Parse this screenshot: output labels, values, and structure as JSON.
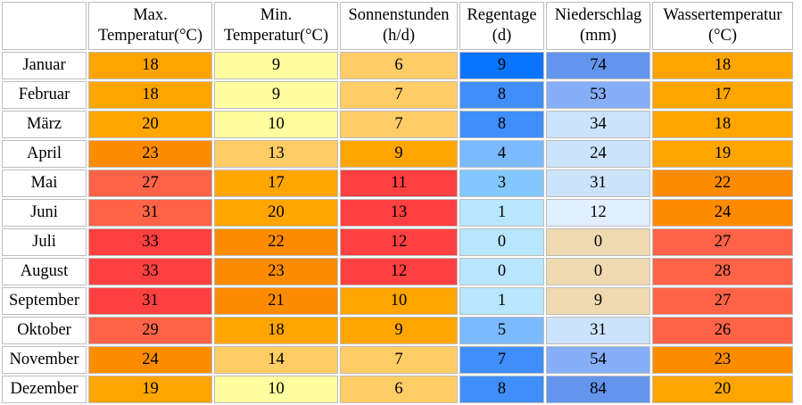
{
  "table": {
    "columns": [
      {
        "line1": "Max.",
        "line2": "Temperatur(°C)"
      },
      {
        "line1": "Min.",
        "line2": "Temperatur(°C)"
      },
      {
        "line1": "Sonnenstunden",
        "line2": "(h/d)"
      },
      {
        "line1": "Regentage",
        "line2": "(d)"
      },
      {
        "line1": "Niederschlag",
        "line2": "(mm)"
      },
      {
        "line1": "Wassertemperatur",
        "line2": "(°C)"
      }
    ],
    "rows": [
      {
        "month": "Januar",
        "cells": [
          {
            "value": "18",
            "color": "#FFA500"
          },
          {
            "value": "9",
            "color": "#FFFFA0"
          },
          {
            "value": "6",
            "color": "#FFCC66"
          },
          {
            "value": "9",
            "color": "#0A74FF"
          },
          {
            "value": "74",
            "color": "#6495ED"
          },
          {
            "value": "18",
            "color": "#FFA500"
          }
        ]
      },
      {
        "month": "Februar",
        "cells": [
          {
            "value": "18",
            "color": "#FFA500"
          },
          {
            "value": "9",
            "color": "#FFFFA0"
          },
          {
            "value": "7",
            "color": "#FFCC66"
          },
          {
            "value": "8",
            "color": "#3F8EFC"
          },
          {
            "value": "53",
            "color": "#87AEF8"
          },
          {
            "value": "17",
            "color": "#FFA500"
          }
        ]
      },
      {
        "month": "März",
        "cells": [
          {
            "value": "20",
            "color": "#FFA500"
          },
          {
            "value": "10",
            "color": "#FFFFA0"
          },
          {
            "value": "7",
            "color": "#FFCC66"
          },
          {
            "value": "8",
            "color": "#3F8EFC"
          },
          {
            "value": "34",
            "color": "#CCE3FC"
          },
          {
            "value": "18",
            "color": "#FFA500"
          }
        ]
      },
      {
        "month": "April",
        "cells": [
          {
            "value": "23",
            "color": "#FF8C00"
          },
          {
            "value": "13",
            "color": "#FFCC66"
          },
          {
            "value": "9",
            "color": "#FFA500"
          },
          {
            "value": "4",
            "color": "#7CB9FF"
          },
          {
            "value": "24",
            "color": "#CCE3FC"
          },
          {
            "value": "19",
            "color": "#FFA500"
          }
        ]
      },
      {
        "month": "Mai",
        "cells": [
          {
            "value": "27",
            "color": "#FF6347"
          },
          {
            "value": "17",
            "color": "#FFA500"
          },
          {
            "value": "11",
            "color": "#FF4040"
          },
          {
            "value": "3",
            "color": "#82C8FF"
          },
          {
            "value": "31",
            "color": "#CCE3FC"
          },
          {
            "value": "22",
            "color": "#FF8C00"
          }
        ]
      },
      {
        "month": "Juni",
        "cells": [
          {
            "value": "31",
            "color": "#FF6347"
          },
          {
            "value": "20",
            "color": "#FFA500"
          },
          {
            "value": "13",
            "color": "#FF4040"
          },
          {
            "value": "1",
            "color": "#B8E6FF"
          },
          {
            "value": "12",
            "color": "#E2EFFF"
          },
          {
            "value": "24",
            "color": "#FF8C00"
          }
        ]
      },
      {
        "month": "Juli",
        "cells": [
          {
            "value": "33",
            "color": "#FF4040"
          },
          {
            "value": "22",
            "color": "#FF8C00"
          },
          {
            "value": "12",
            "color": "#FF4040"
          },
          {
            "value": "0",
            "color": "#B8E6FF"
          },
          {
            "value": "0",
            "color": "#EED9B0"
          },
          {
            "value": "27",
            "color": "#FF6347"
          }
        ]
      },
      {
        "month": "August",
        "cells": [
          {
            "value": "33",
            "color": "#FF4040"
          },
          {
            "value": "23",
            "color": "#FF8C00"
          },
          {
            "value": "12",
            "color": "#FF4040"
          },
          {
            "value": "0",
            "color": "#B8E6FF"
          },
          {
            "value": "0",
            "color": "#EED9B0"
          },
          {
            "value": "28",
            "color": "#FF6347"
          }
        ]
      },
      {
        "month": "September",
        "cells": [
          {
            "value": "31",
            "color": "#FF4040"
          },
          {
            "value": "21",
            "color": "#FF8C00"
          },
          {
            "value": "10",
            "color": "#FFA500"
          },
          {
            "value": "1",
            "color": "#B8E6FF"
          },
          {
            "value": "9",
            "color": "#EED9B0"
          },
          {
            "value": "27",
            "color": "#FF6347"
          }
        ]
      },
      {
        "month": "Oktober",
        "cells": [
          {
            "value": "29",
            "color": "#FF6347"
          },
          {
            "value": "18",
            "color": "#FFA500"
          },
          {
            "value": "9",
            "color": "#FFA500"
          },
          {
            "value": "5",
            "color": "#7CB9FF"
          },
          {
            "value": "31",
            "color": "#CCE3FC"
          },
          {
            "value": "26",
            "color": "#FF6347"
          }
        ]
      },
      {
        "month": "November",
        "cells": [
          {
            "value": "24",
            "color": "#FF8C00"
          },
          {
            "value": "14",
            "color": "#FFCC66"
          },
          {
            "value": "7",
            "color": "#FFCC66"
          },
          {
            "value": "7",
            "color": "#3F8EFC"
          },
          {
            "value": "54",
            "color": "#87AEF8"
          },
          {
            "value": "23",
            "color": "#FF8C00"
          }
        ]
      },
      {
        "month": "Dezember",
        "cells": [
          {
            "value": "19",
            "color": "#FFA500"
          },
          {
            "value": "10",
            "color": "#FFFFA0"
          },
          {
            "value": "6",
            "color": "#FFCC66"
          },
          {
            "value": "8",
            "color": "#3F8EFC"
          },
          {
            "value": "84",
            "color": "#6495ED"
          },
          {
            "value": "20",
            "color": "#FFA500"
          }
        ]
      }
    ]
  }
}
